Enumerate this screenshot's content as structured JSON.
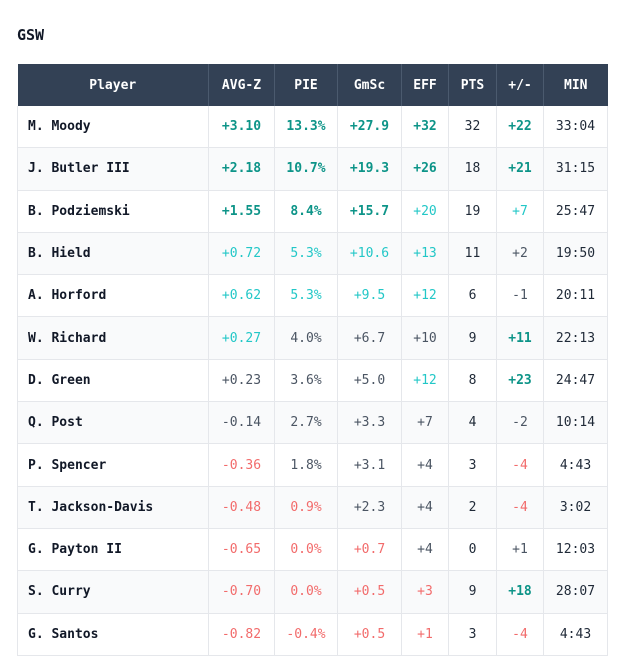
{
  "team": "GSW",
  "columns": [
    "Player",
    "AVG-Z",
    "PIE",
    "GmSc",
    "EFF",
    "PTS",
    "+/-",
    "MIN"
  ],
  "colors": {
    "header_bg": "#334155",
    "strong_positive": "#0d9488",
    "positive": "#22c7c7",
    "neutral": "#4b5563",
    "negative": "#f26b6b"
  },
  "rows": [
    {
      "player": "M. Moody",
      "avgz": "+3.10",
      "avgz_tone": "sg",
      "pie": "13.3%",
      "pie_tone": "sg",
      "gmsc": "+27.9",
      "gmsc_tone": "sg",
      "eff": "+32",
      "eff_tone": "sg",
      "pts": "32",
      "pm": "+22",
      "pm_tone": "sg",
      "min": "33:04"
    },
    {
      "player": "J. Butler III",
      "avgz": "+2.18",
      "avgz_tone": "sg",
      "pie": "10.7%",
      "pie_tone": "sg",
      "gmsc": "+19.3",
      "gmsc_tone": "sg",
      "eff": "+26",
      "eff_tone": "sg",
      "pts": "18",
      "pm": "+21",
      "pm_tone": "sg",
      "min": "31:15"
    },
    {
      "player": "B. Podziemski",
      "avgz": "+1.55",
      "avgz_tone": "sg",
      "pie": "8.4%",
      "pie_tone": "sg",
      "gmsc": "+15.7",
      "gmsc_tone": "sg",
      "eff": "+20",
      "eff_tone": "lg",
      "pts": "19",
      "pm": "+7",
      "pm_tone": "lg",
      "min": "25:47"
    },
    {
      "player": "B. Hield",
      "avgz": "+0.72",
      "avgz_tone": "lg",
      "pie": "5.3%",
      "pie_tone": "lg",
      "gmsc": "+10.6",
      "gmsc_tone": "lg",
      "eff": "+13",
      "eff_tone": "lg",
      "pts": "11",
      "pm": "+2",
      "pm_tone": "n",
      "min": "19:50"
    },
    {
      "player": "A. Horford",
      "avgz": "+0.62",
      "avgz_tone": "lg",
      "pie": "5.3%",
      "pie_tone": "lg",
      "gmsc": "+9.5",
      "gmsc_tone": "lg",
      "eff": "+12",
      "eff_tone": "lg",
      "pts": "6",
      "pm": "-1",
      "pm_tone": "n",
      "min": "20:11"
    },
    {
      "player": "W. Richard",
      "avgz": "+0.27",
      "avgz_tone": "lg",
      "pie": "4.0%",
      "pie_tone": "n",
      "gmsc": "+6.7",
      "gmsc_tone": "n",
      "eff": "+10",
      "eff_tone": "n",
      "pts": "9",
      "pm": "+11",
      "pm_tone": "sg",
      "min": "22:13"
    },
    {
      "player": "D. Green",
      "avgz": "+0.23",
      "avgz_tone": "n",
      "pie": "3.6%",
      "pie_tone": "n",
      "gmsc": "+5.0",
      "gmsc_tone": "n",
      "eff": "+12",
      "eff_tone": "lg",
      "pts": "8",
      "pm": "+23",
      "pm_tone": "sg",
      "min": "24:47"
    },
    {
      "player": "Q. Post",
      "avgz": "-0.14",
      "avgz_tone": "n",
      "pie": "2.7%",
      "pie_tone": "n",
      "gmsc": "+3.3",
      "gmsc_tone": "n",
      "eff": "+7",
      "eff_tone": "n",
      "pts": "4",
      "pm": "-2",
      "pm_tone": "n",
      "min": "10:14"
    },
    {
      "player": "P. Spencer",
      "avgz": "-0.36",
      "avgz_tone": "r",
      "pie": "1.8%",
      "pie_tone": "n",
      "gmsc": "+3.1",
      "gmsc_tone": "n",
      "eff": "+4",
      "eff_tone": "n",
      "pts": "3",
      "pm": "-4",
      "pm_tone": "r",
      "min": "4:43"
    },
    {
      "player": "T. Jackson-Davis",
      "avgz": "-0.48",
      "avgz_tone": "r",
      "pie": "0.9%",
      "pie_tone": "r",
      "gmsc": "+2.3",
      "gmsc_tone": "n",
      "eff": "+4",
      "eff_tone": "n",
      "pts": "2",
      "pm": "-4",
      "pm_tone": "r",
      "min": "3:02"
    },
    {
      "player": "G. Payton II",
      "avgz": "-0.65",
      "avgz_tone": "r",
      "pie": "0.0%",
      "pie_tone": "r",
      "gmsc": "+0.7",
      "gmsc_tone": "r",
      "eff": "+4",
      "eff_tone": "n",
      "pts": "0",
      "pm": "+1",
      "pm_tone": "n",
      "min": "12:03"
    },
    {
      "player": "S. Curry",
      "avgz": "-0.70",
      "avgz_tone": "r",
      "pie": "0.0%",
      "pie_tone": "r",
      "gmsc": "+0.5",
      "gmsc_tone": "r",
      "eff": "+3",
      "eff_tone": "r",
      "pts": "9",
      "pm": "+18",
      "pm_tone": "sg",
      "min": "28:07"
    },
    {
      "player": "G. Santos",
      "avgz": "-0.82",
      "avgz_tone": "r",
      "pie": "-0.4%",
      "pie_tone": "r",
      "gmsc": "+0.5",
      "gmsc_tone": "r",
      "eff": "+1",
      "eff_tone": "r",
      "pts": "3",
      "pm": "-4",
      "pm_tone": "r",
      "min": "4:43"
    }
  ]
}
